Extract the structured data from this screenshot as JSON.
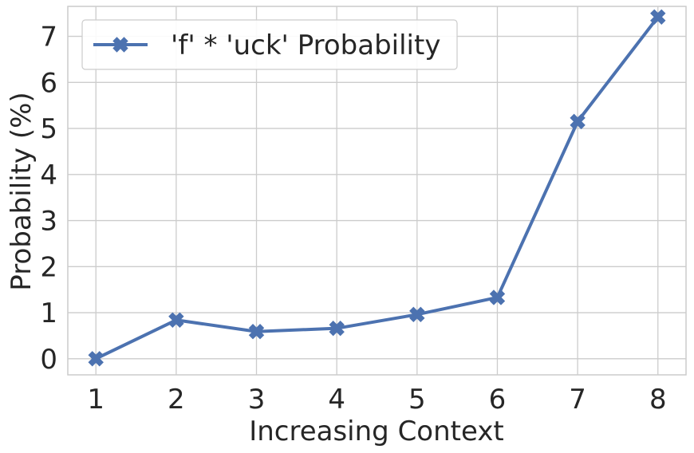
{
  "chart_data": {
    "type": "line",
    "title": "",
    "xlabel": "Increasing Context",
    "ylabel": "Probability (%)",
    "x": [
      1,
      2,
      3,
      4,
      5,
      6,
      7,
      8
    ],
    "xlim": [
      0.65,
      8.35
    ],
    "ylim": [
      -0.35,
      7.65
    ],
    "xticks": [
      "1",
      "2",
      "3",
      "4",
      "5",
      "6",
      "7",
      "8"
    ],
    "yticks": [
      "0",
      "1",
      "2",
      "3",
      "4",
      "5",
      "6",
      "7"
    ],
    "grid": true,
    "legend_position": "top-left",
    "series": [
      {
        "name": "'f' * 'uck' Probability",
        "values": [
          0.0,
          0.84,
          0.59,
          0.66,
          0.96,
          1.33,
          5.15,
          7.42
        ],
        "color": "#4c72b0",
        "marker": "X"
      }
    ]
  }
}
